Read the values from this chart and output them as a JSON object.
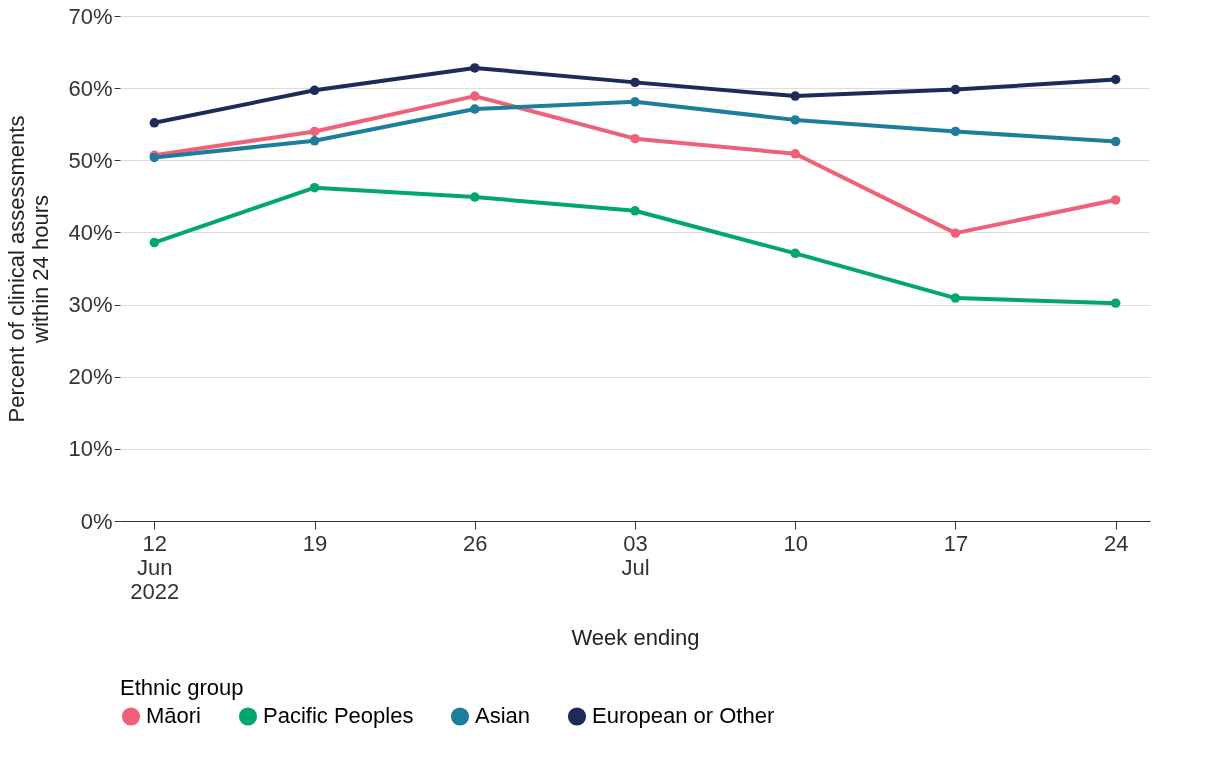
{
  "chart_data": {
    "type": "line",
    "xlabel": "Week ending",
    "ylabel": "Percent of clinical assessments\nwithin 24 hours",
    "legend_title": "Ethnic group",
    "x": [
      "2022-06-12",
      "2022-06-19",
      "2022-06-26",
      "2022-07-03",
      "2022-07-10",
      "2022-07-17",
      "2022-07-24"
    ],
    "xlim": [
      "2022-06-10T12:00",
      "2022-07-25T12:00"
    ],
    "xticks": [
      {
        "value": "2022-06-12",
        "label": "12\nJun\n2022"
      },
      {
        "value": "2022-06-19",
        "label": "19"
      },
      {
        "value": "2022-06-26",
        "label": "26"
      },
      {
        "value": "2022-07-03",
        "label": "03\nJul"
      },
      {
        "value": "2022-07-10",
        "label": "10"
      },
      {
        "value": "2022-07-17",
        "label": "17"
      },
      {
        "value": "2022-07-24",
        "label": "24"
      }
    ],
    "ylim": [
      0,
      70
    ],
    "yticks": [
      {
        "value": 0,
        "label": "0%"
      },
      {
        "value": 10,
        "label": "10%"
      },
      {
        "value": 20,
        "label": "20%"
      },
      {
        "value": 30,
        "label": "30%"
      },
      {
        "value": 40,
        "label": "40%"
      },
      {
        "value": 50,
        "label": "50%"
      },
      {
        "value": 60,
        "label": "60%"
      },
      {
        "value": 70,
        "label": "70%"
      }
    ],
    "series": [
      {
        "name": "Māori",
        "color": "#ef6079",
        "values": [
          50.7,
          54.0,
          58.9,
          53.0,
          50.9,
          39.9,
          44.5
        ]
      },
      {
        "name": "Pacific Peoples",
        "color": "#03a66f",
        "values": [
          38.6,
          46.2,
          44.9,
          43.0,
          37.1,
          30.9,
          30.2
        ]
      },
      {
        "name": "Asian",
        "color": "#1d7e9c",
        "values": [
          50.4,
          52.7,
          57.1,
          58.1,
          55.6,
          54.0,
          52.6
        ]
      },
      {
        "name": "European or Other",
        "color": "#1e2a5a",
        "values": [
          55.2,
          59.7,
          62.8,
          60.8,
          58.9,
          59.8,
          61.2
        ]
      }
    ],
    "grid": "y",
    "legend": "bottom",
    "marker": "circle",
    "line_style": "solid"
  }
}
